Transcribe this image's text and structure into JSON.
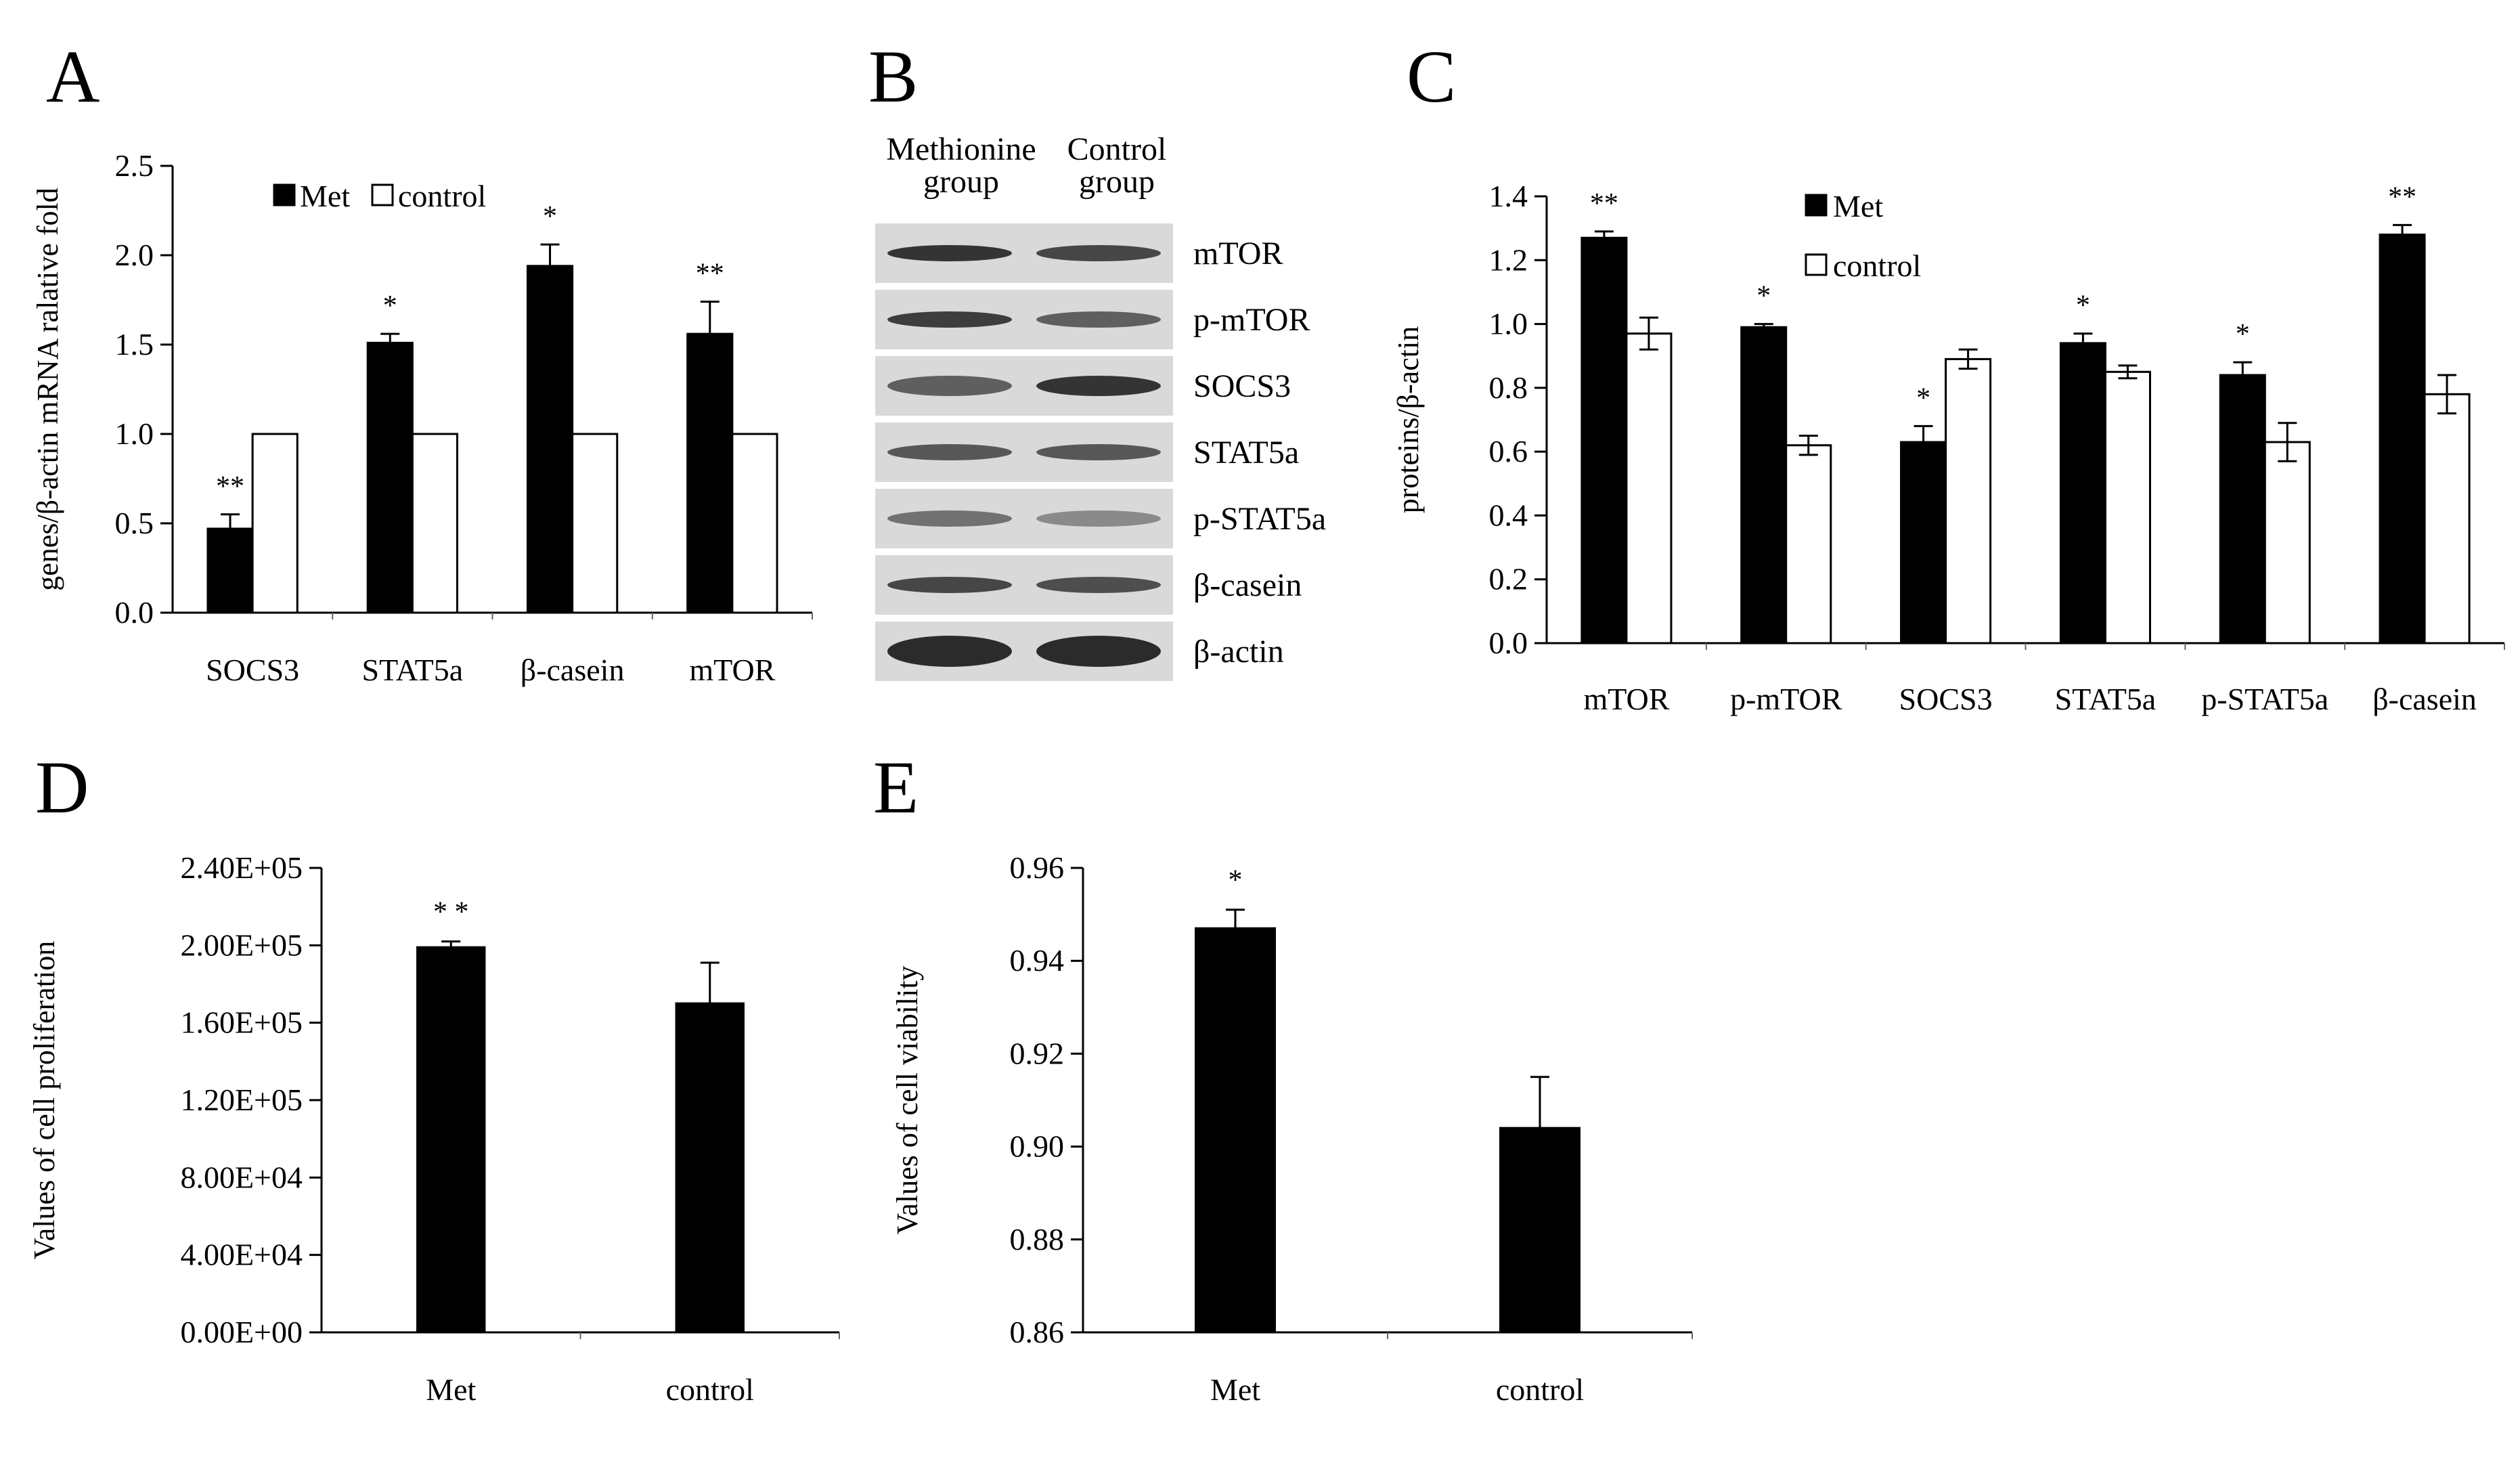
{
  "panels": {
    "A": "A",
    "B": "B",
    "C": "C",
    "D": "D",
    "E": "E"
  },
  "blot": {
    "headers": [
      [
        "Methionine",
        "group"
      ],
      [
        "Control",
        "group"
      ]
    ],
    "rows": [
      "mTOR",
      "p-mTOR",
      "SOCS3",
      "STAT5a",
      "p-STAT5a",
      "β-casein",
      "β-actin"
    ],
    "colors": {
      "background": "#d9d9d9",
      "band": "#2b2b2b"
    }
  },
  "chart_data": [
    {
      "id": "A",
      "type": "bar",
      "ylabel": "genes/β-actin mRNA ralative fold",
      "ylim": [
        0,
        2.5
      ],
      "yticks": [
        "0.0",
        "0.5",
        "1.0",
        "1.5",
        "2.0",
        "2.5"
      ],
      "categories": [
        "SOCS3",
        "STAT5a",
        "β-casein",
        "mTOR"
      ],
      "legend_position": "top",
      "series": [
        {
          "name": "Met",
          "values": [
            0.47,
            1.51,
            1.94,
            1.56
          ],
          "errors": [
            0.08,
            0.05,
            0.12,
            0.18
          ],
          "color": "#000000"
        },
        {
          "name": "control",
          "values": [
            1.0,
            1.0,
            1.0,
            1.0
          ],
          "errors": [
            0,
            0,
            0,
            0
          ],
          "color": "#ffffff"
        }
      ],
      "significance": [
        "**",
        "*",
        "*",
        "**"
      ]
    },
    {
      "id": "C",
      "type": "bar",
      "ylabel": "proteins/β-actin",
      "ylim": [
        0,
        1.4
      ],
      "yticks": [
        "0.0",
        "0.2",
        "0.4",
        "0.6",
        "0.8",
        "1.0",
        "1.2",
        "1.4"
      ],
      "categories": [
        "mTOR",
        "p-mTOR",
        "SOCS3",
        "STAT5a",
        "p-STAT5a",
        "β-casein"
      ],
      "legend_position": "top",
      "series": [
        {
          "name": "Met",
          "values": [
            1.27,
            0.99,
            0.63,
            0.94,
            0.84,
            1.28
          ],
          "errors": [
            0.02,
            0.01,
            0.05,
            0.03,
            0.04,
            0.03
          ],
          "color": "#000000"
        },
        {
          "name": "control",
          "values": [
            0.97,
            0.62,
            0.89,
            0.85,
            0.63,
            0.78
          ],
          "errors": [
            0.05,
            0.03,
            0.03,
            0.02,
            0.06,
            0.06
          ],
          "color": "#ffffff"
        }
      ],
      "significance": [
        "**",
        "*",
        "*",
        "*",
        "*",
        "**"
      ]
    },
    {
      "id": "D",
      "type": "bar",
      "ylabel": "Values of cell proliferation",
      "ylim": [
        0,
        240000
      ],
      "yticks": [
        "0.00E+00",
        "4.00E+04",
        "8.00E+04",
        "1.20E+05",
        "1.60E+05",
        "2.00E+05",
        "2.40E+05"
      ],
      "categories": [
        "Met",
        "control"
      ],
      "values": [
        199000,
        170000
      ],
      "errors": [
        3000,
        21000
      ],
      "significance": [
        "* *",
        ""
      ]
    },
    {
      "id": "E",
      "type": "bar",
      "ylabel": "Values of cell viability",
      "ylim": [
        0.86,
        0.96
      ],
      "yticks": [
        "0.86",
        "0.88",
        "0.90",
        "0.92",
        "0.94",
        "0.96"
      ],
      "categories": [
        "Met",
        "control"
      ],
      "values": [
        0.947,
        0.904
      ],
      "errors": [
        0.004,
        0.011
      ],
      "significance": [
        "*",
        ""
      ]
    }
  ]
}
